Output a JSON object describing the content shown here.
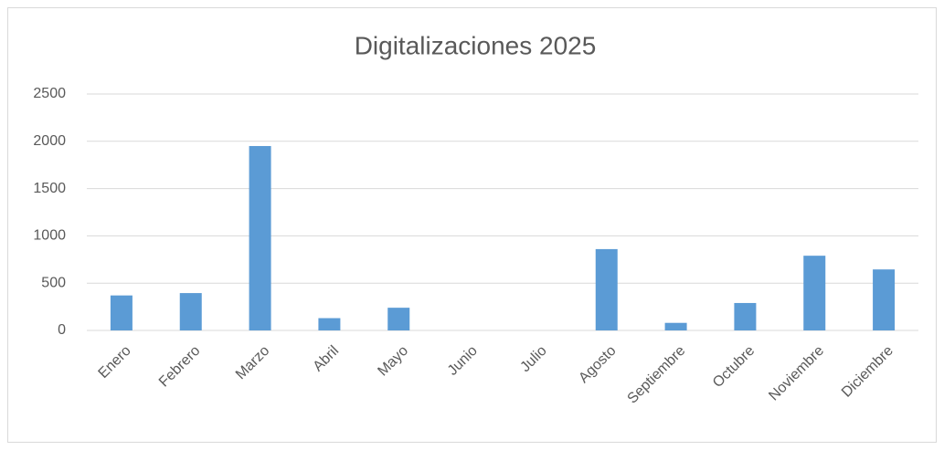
{
  "chart_data": {
    "type": "bar",
    "title": "Digitalizaciones 2025",
    "categories": [
      "Enero",
      "Febrero",
      "Marzo",
      "Abril",
      "Mayo",
      "Junio",
      "Julio",
      "Agosto",
      "Septiembre",
      "Octubre",
      "Noviembre",
      "Diciembre"
    ],
    "values": [
      370,
      395,
      1950,
      130,
      240,
      0,
      0,
      860,
      80,
      290,
      790,
      645
    ],
    "color": "#5b9bd5",
    "ylim": [
      0,
      2500
    ],
    "yticks": [
      0,
      500,
      1000,
      1500,
      2000,
      2500
    ],
    "grid": true
  }
}
